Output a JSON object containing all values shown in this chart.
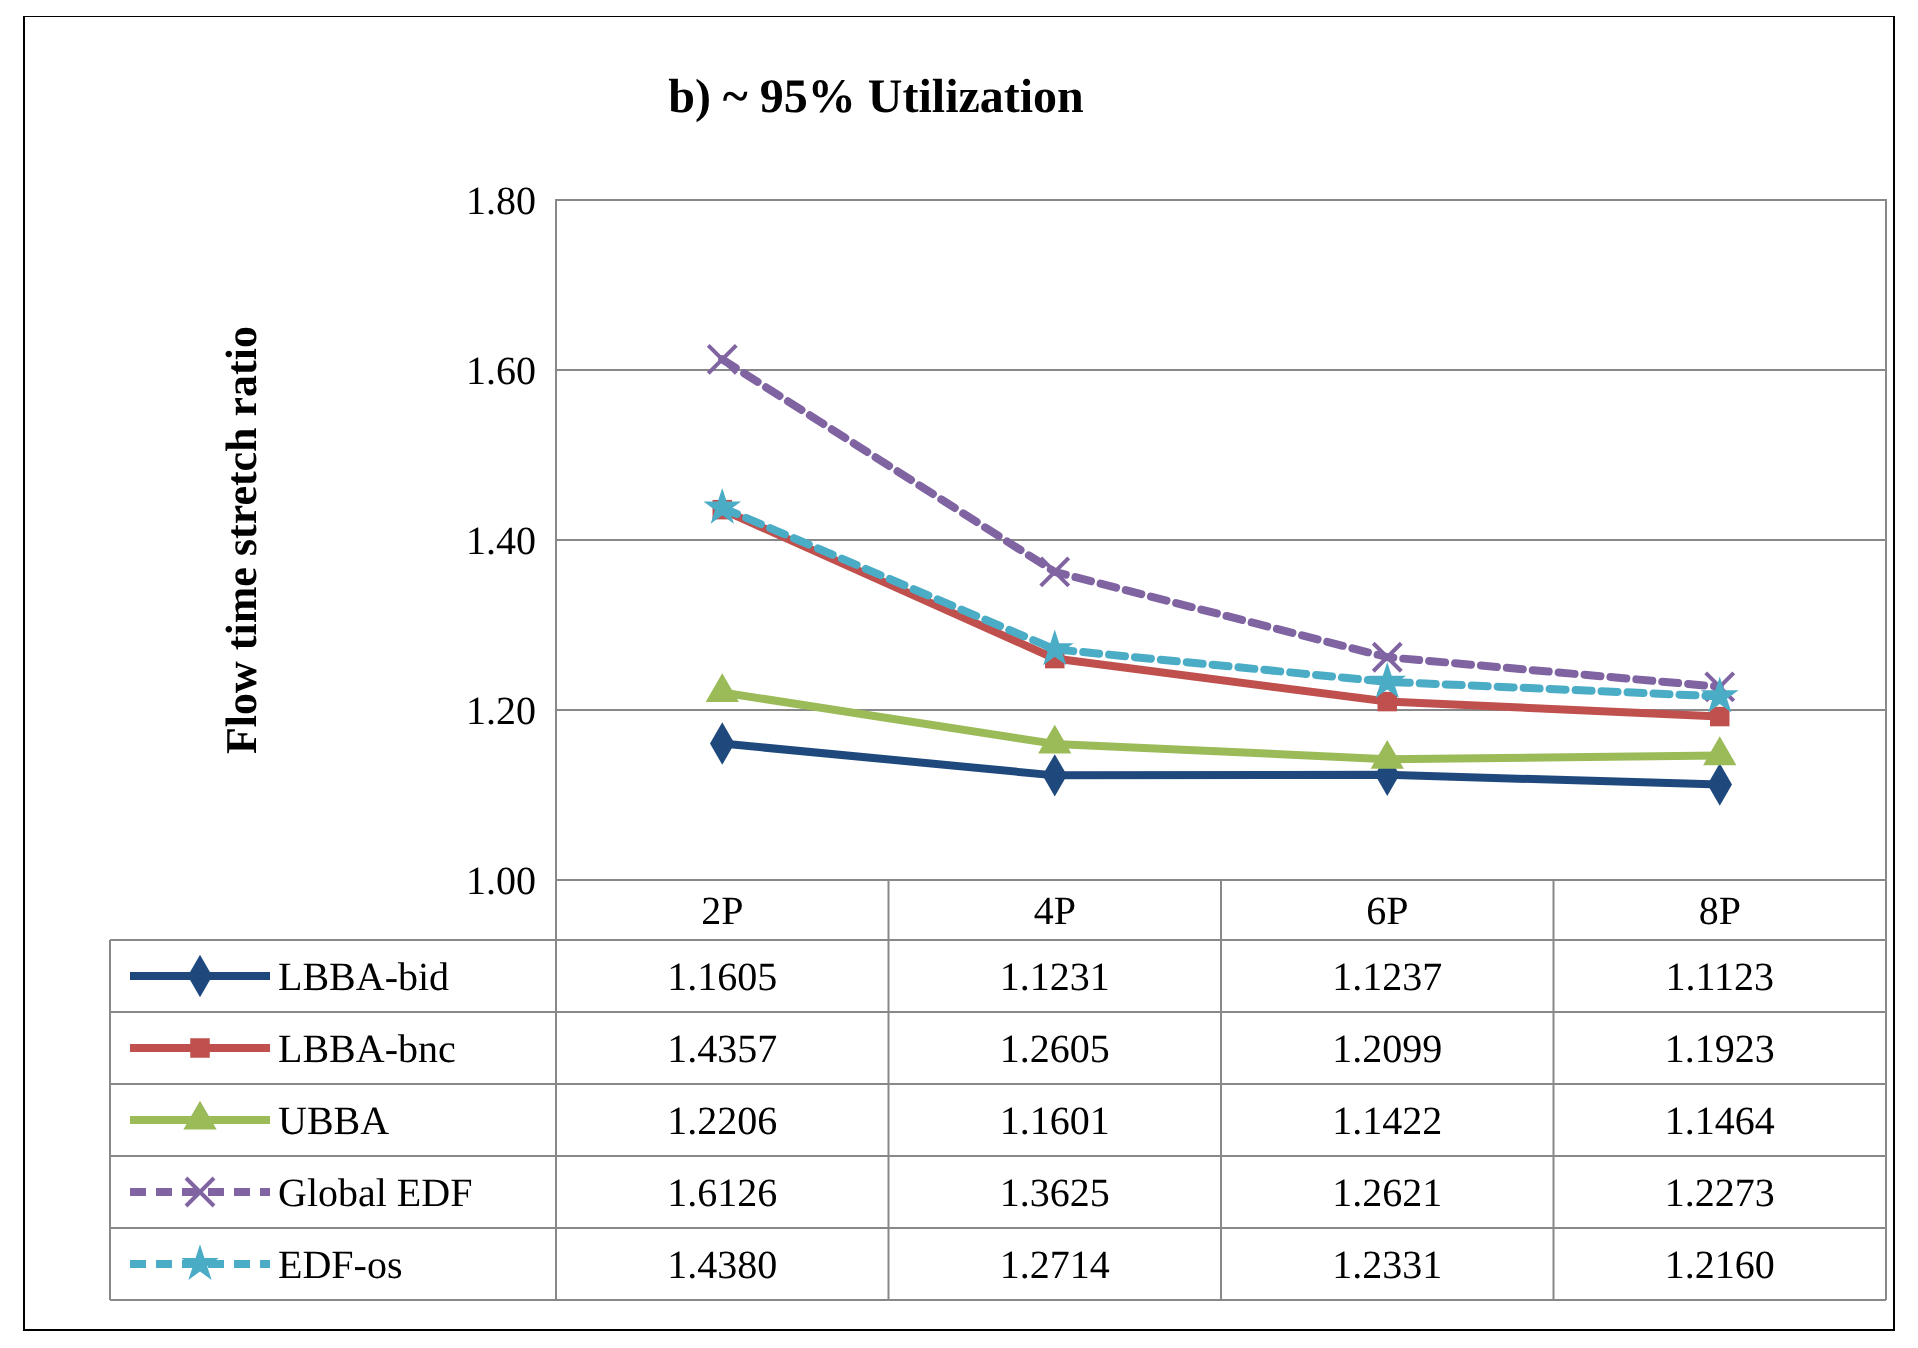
{
  "chart_data": {
    "type": "line",
    "title": "b) ~ 95% Utilization",
    "ylabel": "Flow time stretch ratio",
    "categories": [
      "2P",
      "4P",
      "6P",
      "8P"
    ],
    "ylim": [
      1.0,
      1.8
    ],
    "yticks": [
      {
        "value": 1.0,
        "label": "1.00"
      },
      {
        "value": 1.2,
        "label": "1.20"
      },
      {
        "value": 1.4,
        "label": "1.40"
      },
      {
        "value": 1.6,
        "label": "1.60"
      },
      {
        "value": 1.8,
        "label": "1.80"
      }
    ],
    "grid": "y",
    "legend": "bottom",
    "series": [
      {
        "name": "LBBA-bid",
        "color": "#1f497d",
        "marker": "diamond",
        "line_style": "solid",
        "values": [
          1.1605,
          1.1231,
          1.1237,
          1.1123
        ],
        "value_labels": [
          "1.1605",
          "1.1231",
          "1.1237",
          "1.1123"
        ]
      },
      {
        "name": "LBBA-bnc",
        "color": "#c0504d",
        "marker": "square",
        "line_style": "solid",
        "values": [
          1.4357,
          1.2605,
          1.2099,
          1.1923
        ],
        "value_labels": [
          "1.4357",
          "1.2605",
          "1.2099",
          "1.1923"
        ]
      },
      {
        "name": "UBBA",
        "color": "#9bbb59",
        "marker": "triangle",
        "line_style": "solid",
        "values": [
          1.2206,
          1.1601,
          1.1422,
          1.1464
        ],
        "value_labels": [
          "1.2206",
          "1.1601",
          "1.1422",
          "1.1464"
        ]
      },
      {
        "name": "Global EDF",
        "color": "#8064a2",
        "marker": "cross",
        "line_style": "dashed",
        "values": [
          1.6126,
          1.3625,
          1.2621,
          1.2273
        ],
        "value_labels": [
          "1.6126",
          "1.3625",
          "1.2621",
          "1.2273"
        ]
      },
      {
        "name": "EDF-os",
        "color": "#4bacc6",
        "marker": "star",
        "line_style": "dashed",
        "values": [
          1.438,
          1.2714,
          1.2331,
          1.216
        ],
        "value_labels": [
          "1.4380",
          "1.2714",
          "1.2331",
          "1.2160"
        ]
      }
    ]
  }
}
